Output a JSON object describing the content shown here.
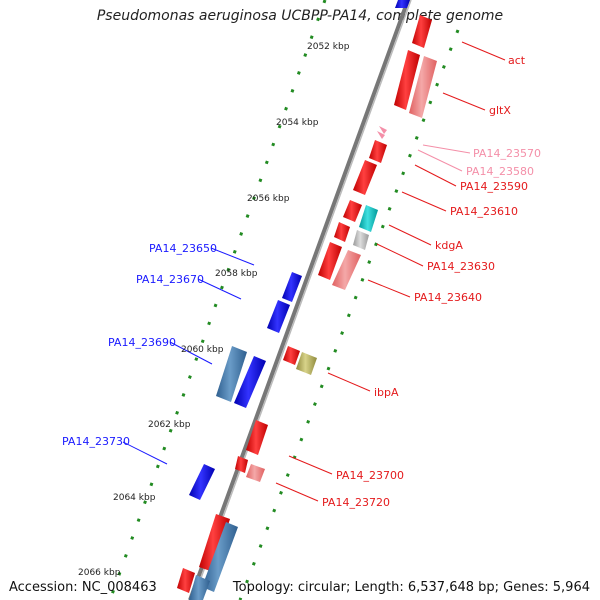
{
  "title": "Pseudomonas aeruginosa UCBPP-PA14, complete genome",
  "footer": {
    "accession": "Accession: NC_008463",
    "topology": "Topology: circular; Length: 6,537,648 bp; Genes: 5,964"
  },
  "ticks": [
    "2052 kbp",
    "2054 kbp",
    "2056 kbp",
    "2058 kbp",
    "2060 kbp",
    "2062 kbp",
    "2064 kbp",
    "2066 kbp"
  ],
  "gene_labels": [
    {
      "text": "act",
      "color": "#e41a1c"
    },
    {
      "text": "gltX",
      "color": "#e41a1c"
    },
    {
      "text": "PA14_23570",
      "color": "#f48fa8"
    },
    {
      "text": "PA14_23580",
      "color": "#f48fa8"
    },
    {
      "text": "PA14_23590",
      "color": "#e41a1c"
    },
    {
      "text": "PA14_23610",
      "color": "#e41a1c"
    },
    {
      "text": "kdgA",
      "color": "#e41a1c"
    },
    {
      "text": "PA14_23630",
      "color": "#e41a1c"
    },
    {
      "text": "PA14_23640",
      "color": "#e41a1c"
    },
    {
      "text": "ibpA",
      "color": "#e41a1c"
    },
    {
      "text": "PA14_23700",
      "color": "#e41a1c"
    },
    {
      "text": "PA14_23720",
      "color": "#e41a1c"
    },
    {
      "text": "PA14_23650",
      "color": "#1a1aff"
    },
    {
      "text": "PA14_23670",
      "color": "#1a1aff"
    },
    {
      "text": "PA14_23690",
      "color": "#1a1aff"
    },
    {
      "text": "PA14_23730",
      "color": "#1a1aff"
    }
  ],
  "colors": {
    "backbone": "#888888",
    "gc_dots": "#228b22",
    "forward_gene": "#ff0000",
    "reverse_gene": "#0000ee",
    "forward_pseudo": "#f08080",
    "reverse_pseudo": "#4682b4",
    "kdgA_gene": "#00bfbf",
    "ibpA_gene": "#bdb76b"
  }
}
